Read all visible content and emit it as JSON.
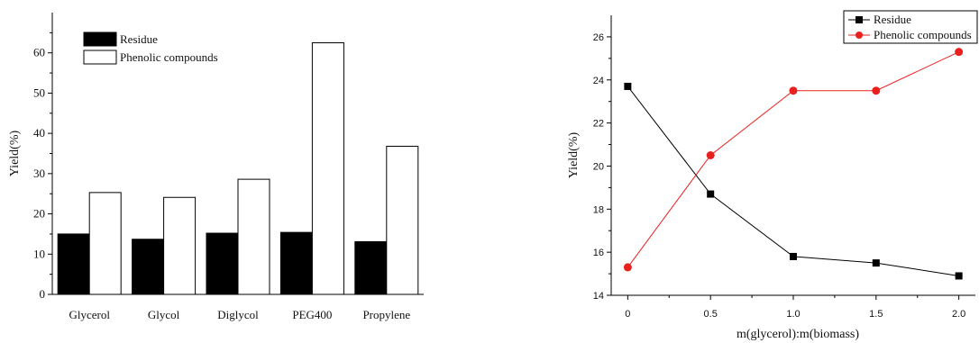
{
  "chart_data": [
    {
      "type": "bar",
      "title": "",
      "xlabel": "",
      "ylabel": "Yield(%)",
      "ylim": [
        0,
        70
      ],
      "yticks": [
        0,
        10,
        20,
        30,
        40,
        50,
        60
      ],
      "categories": [
        "Glycerol",
        "Glycol",
        "Diglycol",
        "PEG400",
        "Propylene"
      ],
      "series": [
        {
          "name": "Residue",
          "color": "#000000",
          "values": [
            15.0,
            13.7,
            15.2,
            15.4,
            13.1
          ]
        },
        {
          "name": "Phenolic compounds",
          "color": "#ffffff",
          "values": [
            25.3,
            24.1,
            28.6,
            62.5,
            36.8
          ]
        }
      ],
      "legend_position": "top-left",
      "grid": false
    },
    {
      "type": "line",
      "title": "",
      "xlabel": "m(glycerol):m(biomass)",
      "ylabel": "Yield(%)",
      "xlim": [
        -0.1,
        2.1
      ],
      "ylim": [
        14,
        27
      ],
      "xticks": [
        "0",
        "0.5",
        "1.0",
        "1.5",
        "2.0"
      ],
      "xtick_values": [
        0,
        0.5,
        1.0,
        1.5,
        2.0
      ],
      "yticks": [
        14,
        16,
        18,
        20,
        22,
        24,
        26
      ],
      "series": [
        {
          "name": "Residue",
          "color": "#000000",
          "marker": "square",
          "x": [
            0,
            0.5,
            1.0,
            1.5,
            2.0
          ],
          "values": [
            23.7,
            18.7,
            15.8,
            15.5,
            14.9
          ]
        },
        {
          "name": "Phenolic compounds",
          "color": "#e8211f",
          "marker": "circle",
          "x": [
            0,
            0.5,
            1.0,
            1.5,
            2.0
          ],
          "values": [
            15.3,
            20.5,
            23.5,
            23.5,
            25.3
          ]
        }
      ],
      "legend_position": "top-right",
      "grid": false
    }
  ]
}
